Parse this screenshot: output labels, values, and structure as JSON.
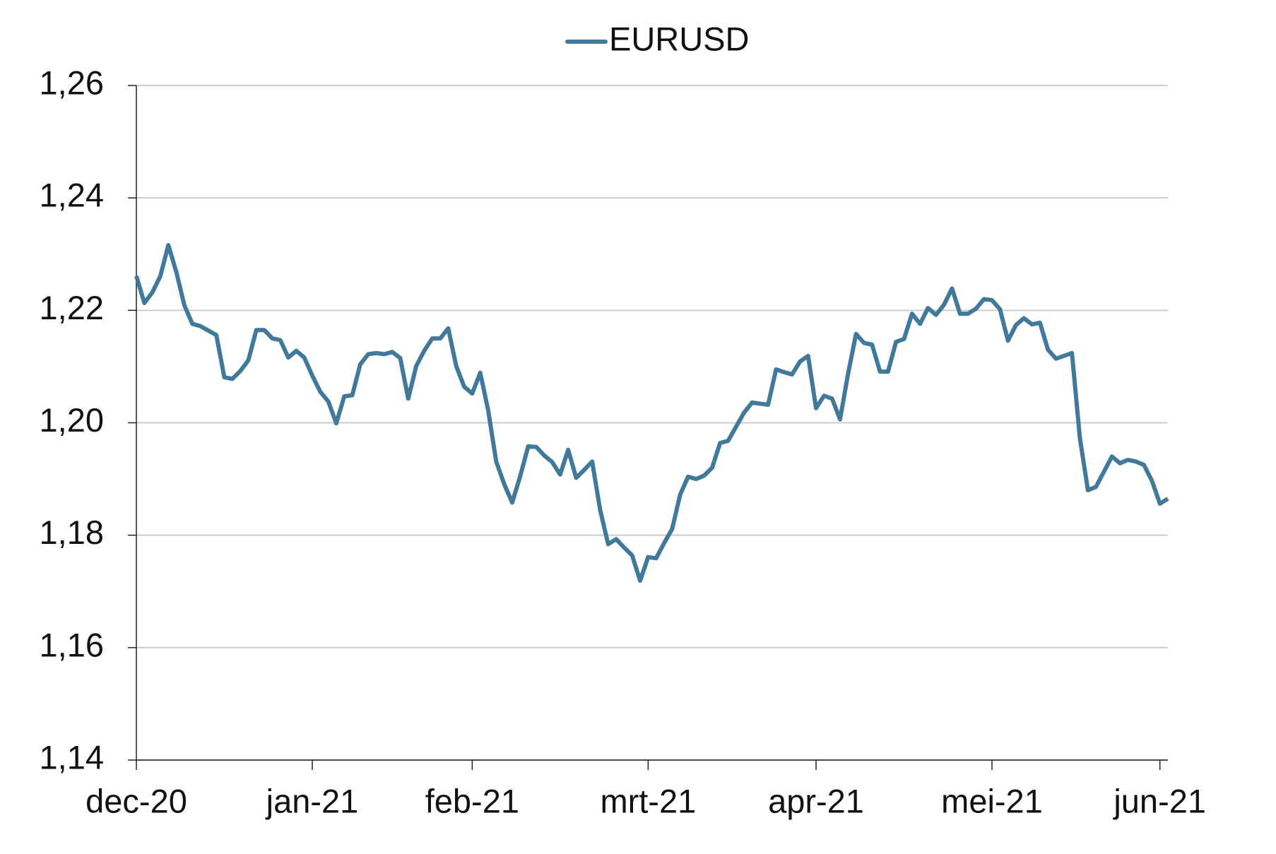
{
  "chart_data": {
    "type": "line",
    "legend": "top",
    "grid": true,
    "categories": [
      "dec-20",
      null,
      null,
      null,
      null,
      null,
      null,
      null,
      null,
      null,
      null,
      null,
      null,
      null,
      null,
      null,
      null,
      null,
      null,
      null,
      null,
      null,
      "jan-21",
      null,
      null,
      null,
      null,
      null,
      null,
      null,
      null,
      null,
      null,
      null,
      null,
      null,
      null,
      null,
      null,
      null,
      null,
      null,
      "feb-21",
      null,
      null,
      null,
      null,
      null,
      null,
      null,
      null,
      null,
      null,
      null,
      null,
      null,
      null,
      null,
      null,
      null,
      null,
      null,
      null,
      null,
      "mrt-21",
      null,
      null,
      null,
      null,
      null,
      null,
      null,
      null,
      null,
      null,
      null,
      null,
      null,
      null,
      null,
      null,
      null,
      null,
      null,
      null,
      "apr-21",
      null,
      null,
      null,
      null,
      null,
      null,
      null,
      null,
      null,
      null,
      null,
      null,
      null,
      null,
      null,
      null,
      null,
      null,
      null,
      null,
      null,
      "mei-21",
      null,
      null,
      null,
      null,
      null,
      null,
      null,
      null,
      null,
      null,
      null,
      null,
      null,
      null,
      null,
      null,
      null,
      null,
      null,
      null,
      "jun-21",
      null
    ],
    "series": [
      {
        "name": "EURUSD",
        "color": "#41799a",
        "values": [
          1.2261,
          1.2213,
          1.2232,
          1.2261,
          1.2316,
          1.2268,
          1.2209,
          1.2176,
          1.2172,
          1.2164,
          1.2156,
          1.2081,
          1.2078,
          1.2092,
          1.2111,
          1.2165,
          1.2165,
          1.215,
          1.2147,
          1.2116,
          1.2128,
          1.2116,
          1.2084,
          1.2055,
          1.2038,
          1.1999,
          1.2047,
          1.2049,
          1.2104,
          1.2122,
          1.2124,
          1.2122,
          1.2126,
          1.2115,
          1.2043,
          1.2101,
          1.2128,
          1.215,
          1.215,
          1.2168,
          1.2101,
          1.2064,
          1.2052,
          1.2089,
          1.2022,
          1.1931,
          1.1891,
          1.1858,
          1.1905,
          1.1958,
          1.1957,
          1.1942,
          1.193,
          1.1908,
          1.1952,
          1.1902,
          1.1916,
          1.1931,
          1.1845,
          1.1784,
          1.1793,
          1.1778,
          1.1764,
          1.1719,
          1.1761,
          1.1759,
          1.1786,
          1.1811,
          1.1872,
          1.1904,
          1.19,
          1.1906,
          1.192,
          1.1964,
          1.1968,
          1.1993,
          1.2018,
          1.2036,
          1.2034,
          1.2032,
          1.2095,
          1.209,
          1.2086,
          1.2109,
          1.2119,
          1.2026,
          1.2048,
          1.2043,
          1.2006,
          1.2087,
          1.2158,
          1.2142,
          1.2139,
          1.2091,
          1.2091,
          1.2144,
          1.2149,
          1.2194,
          1.2176,
          1.2204,
          1.2192,
          1.221,
          1.2239,
          1.2194,
          1.2194,
          1.2203,
          1.222,
          1.2218,
          1.2202,
          1.2146,
          1.2174,
          1.2186,
          1.2175,
          1.2178,
          1.213,
          1.2114,
          1.2119,
          1.2124,
          1.1972,
          1.188,
          1.1886,
          1.1913,
          1.194,
          1.1928,
          1.1934,
          1.1931,
          1.1925,
          1.1897,
          1.1856,
          1.1865
        ]
      }
    ],
    "ylim": [
      1.14,
      1.26
    ],
    "yticks": [
      {
        "value": 1.14,
        "label": "1,14"
      },
      {
        "value": 1.16,
        "label": "1,16"
      },
      {
        "value": 1.18,
        "label": "1,18"
      },
      {
        "value": 1.2,
        "label": "1,20"
      },
      {
        "value": 1.22,
        "label": "1,22"
      },
      {
        "value": 1.24,
        "label": "1,24"
      },
      {
        "value": 1.26,
        "label": "1,26"
      }
    ]
  }
}
